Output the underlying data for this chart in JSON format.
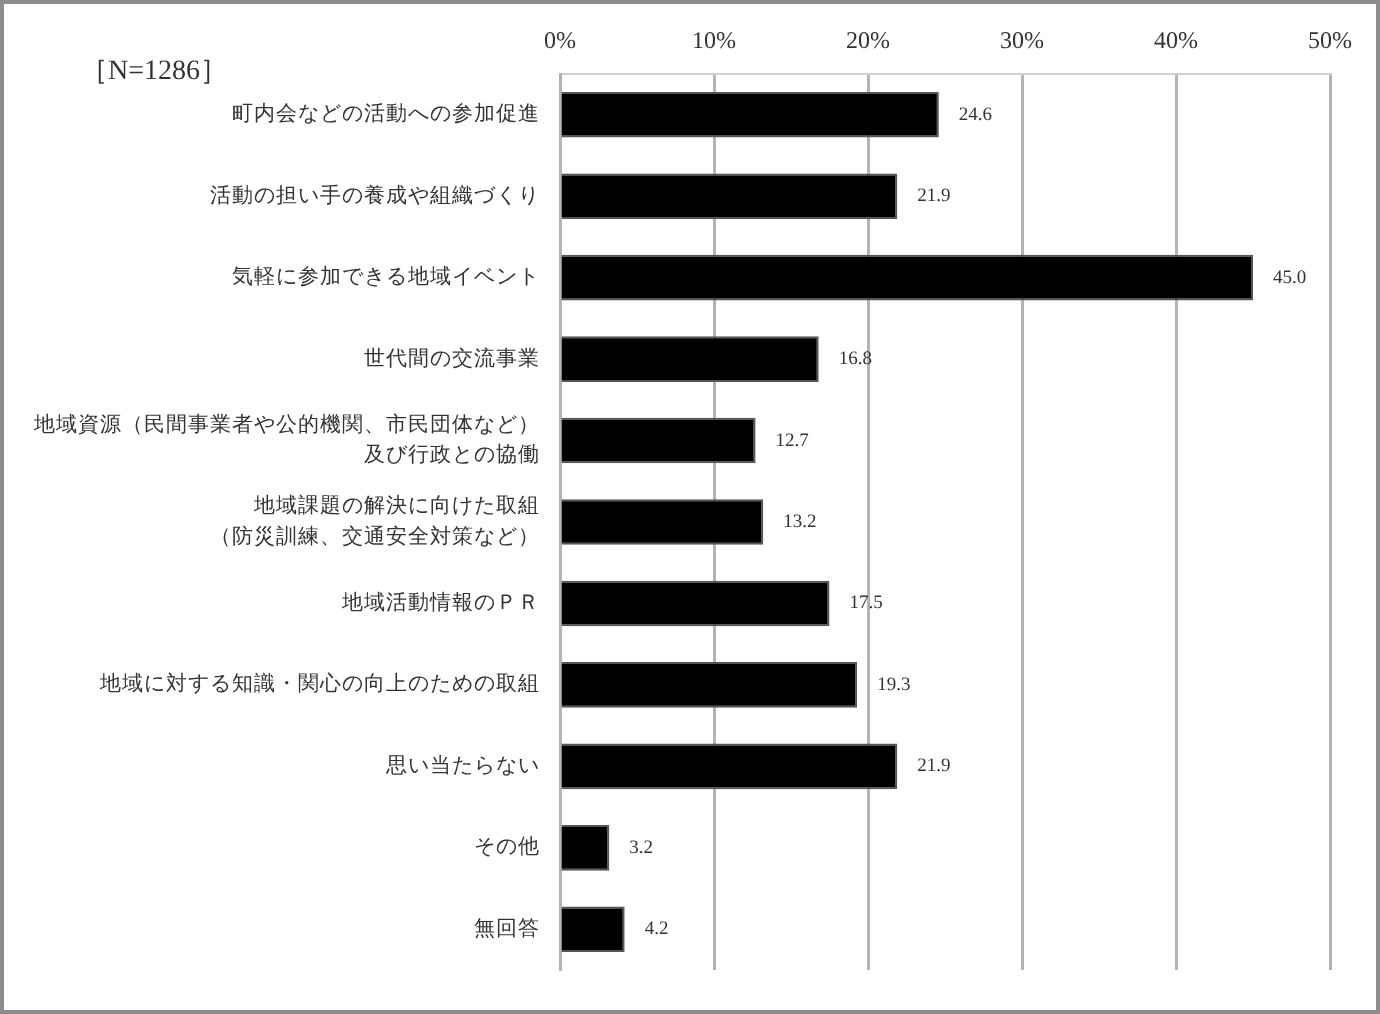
{
  "chart_data": {
    "type": "bar",
    "orientation": "horizontal",
    "categories": [
      "町内会などの活動への参加促進",
      "活動の担い手の養成や組織づくり",
      "気軽に参加できる地域イベント",
      "世代間の交流事業",
      "地域資源（民間事業者や公的機関、市民団体など）及び行政との協働",
      "地域課題の解決に向けた取組（防災訓練、交通安全対策など）",
      "地域活動情報のＰＲ",
      "地域に対する知識・関心の向上のための取組",
      "思い当たらない",
      "その他",
      "無回答"
    ],
    "values": [
      24.6,
      21.9,
      45.0,
      16.8,
      12.7,
      13.2,
      17.5,
      19.3,
      21.9,
      3.2,
      4.2
    ],
    "value_labels": [
      "24.6",
      "21.9",
      "45.0",
      "16.8",
      "12.7",
      "13.2",
      "17.5",
      "19.3",
      "21.9",
      "3.2",
      "4.2"
    ],
    "color": "#000000",
    "xlim": [
      0,
      50
    ],
    "xticks": [
      {
        "value": 0,
        "label": "0%"
      },
      {
        "value": 10,
        "label": "10%"
      },
      {
        "value": 20,
        "label": "20%"
      },
      {
        "value": 30,
        "label": "30%"
      },
      {
        "value": 40,
        "label": "40%"
      },
      {
        "value": 50,
        "label": "50%"
      }
    ],
    "grid": "x",
    "legend": false,
    "annotations": [
      "［N=1286］"
    ]
  }
}
